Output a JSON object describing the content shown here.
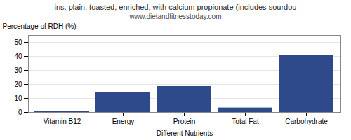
{
  "chart_data": {
    "type": "bar",
    "title": "ins, plain, toasted, enriched, with calcium propionate (includes sourdou",
    "subtitle": "www.dietandfitnesstoday.com",
    "xlabel": "Different Nutrients",
    "ylabel": "Percentage of RDH (%)",
    "categories": [
      "Vitamin B12",
      "Energy",
      "Protein",
      "Total Fat",
      "Carbohydrate"
    ],
    "values": [
      1.0,
      14.5,
      18.5,
      3.2,
      41.0
    ],
    "color": "#2e4a8a",
    "ylim": [
      0,
      55
    ],
    "yticks": [
      0,
      10,
      20,
      30,
      40,
      50
    ],
    "grid": true
  }
}
